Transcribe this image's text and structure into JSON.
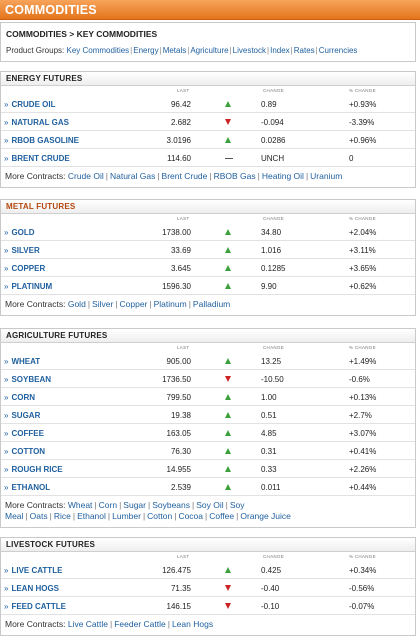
{
  "header": {
    "title": "COMMODITIES"
  },
  "nav": {
    "breadcrumb": "COMMODITIES > KEY COMMODITIES",
    "groups_label": "Product Groups:",
    "groups": [
      "Key Commodities",
      "Energy",
      "Metals",
      "Agriculture",
      "Livestock",
      "Index",
      "Rates",
      "Currencies"
    ]
  },
  "columns": {
    "last": "LAST",
    "change": "CHANGE",
    "pct_change": "% CHANGE"
  },
  "more_label": "More Contracts:",
  "arrow_colors": {
    "up": "#3ca03c",
    "down": "#cc2222"
  },
  "sections": [
    {
      "title": "ENERGY FUTURES",
      "rows": [
        {
          "name": "CRUDE OIL",
          "last": "96.42",
          "dir": "up",
          "change": "0.89",
          "pct": "+0.93%"
        },
        {
          "name": "NATURAL GAS",
          "last": "2.682",
          "dir": "down",
          "change": "-0.094",
          "pct": "-3.39%"
        },
        {
          "name": "RBOB GASOLINE",
          "last": "3.0196",
          "dir": "up",
          "change": "0.0286",
          "pct": "+0.96%"
        },
        {
          "name": "BRENT CRUDE",
          "last": "114.60",
          "dir": "flat",
          "change": "UNCH",
          "pct": "0"
        }
      ],
      "more": [
        "Crude Oil",
        "Natural Gas",
        "Brent Crude",
        "RBOB Gas",
        "Heating Oil",
        "Uranium"
      ]
    },
    {
      "title": "METAL FUTURES",
      "rows": [
        {
          "name": "GOLD",
          "last": "1738.00",
          "dir": "up",
          "change": "34.80",
          "pct": "+2.04%"
        },
        {
          "name": "SILVER",
          "last": "33.69",
          "dir": "up",
          "change": "1.016",
          "pct": "+3.11%"
        },
        {
          "name": "COPPER",
          "last": "3.645",
          "dir": "up",
          "change": "0.1285",
          "pct": "+3.65%"
        },
        {
          "name": "PLATINUM",
          "last": "1596.30",
          "dir": "up",
          "change": "9.90",
          "pct": "+0.62%"
        }
      ],
      "more": [
        "Gold",
        "Silver",
        "Copper",
        "Platinum",
        "Palladium"
      ]
    },
    {
      "title": "AGRICULTURE FUTURES",
      "rows": [
        {
          "name": "WHEAT",
          "last": "905.00",
          "dir": "up",
          "change": "13.25",
          "pct": "+1.49%"
        },
        {
          "name": "SOYBEAN",
          "last": "1736.50",
          "dir": "down",
          "change": "-10.50",
          "pct": "-0.6%"
        },
        {
          "name": "CORN",
          "last": "799.50",
          "dir": "up",
          "change": "1.00",
          "pct": "+0.13%"
        },
        {
          "name": "SUGAR",
          "last": "19.38",
          "dir": "up",
          "change": "0.51",
          "pct": "+2.7%"
        },
        {
          "name": "COFFEE",
          "last": "163.05",
          "dir": "up",
          "change": "4.85",
          "pct": "+3.07%"
        },
        {
          "name": "COTTON",
          "last": "76.30",
          "dir": "up",
          "change": "0.31",
          "pct": "+0.41%"
        },
        {
          "name": "ROUGH RICE",
          "last": "14.955",
          "dir": "up",
          "change": "0.33",
          "pct": "+2.26%"
        },
        {
          "name": "ETHANOL",
          "last": "2.539",
          "dir": "up",
          "change": "0.011",
          "pct": "+0.44%"
        }
      ],
      "more": [
        "Wheat",
        "Corn",
        "Sugar",
        "Soybeans",
        "Soy Oil",
        "Soy Meal",
        "Oats",
        "Rice",
        "Ethanol",
        "Lumber",
        "Cotton",
        "Cocoa",
        "Coffee",
        "Orange Juice"
      ]
    },
    {
      "title": "LIVESTOCK FUTURES",
      "rows": [
        {
          "name": "LIVE CATTLE",
          "last": "126.475",
          "dir": "up",
          "change": "0.425",
          "pct": "+0.34%"
        },
        {
          "name": "LEAN HOGS",
          "last": "71.35",
          "dir": "down",
          "change": "-0.40",
          "pct": "-0.56%"
        },
        {
          "name": "FEED CATTLE",
          "last": "146.15",
          "dir": "down",
          "change": "-0.10",
          "pct": "-0.07%"
        }
      ],
      "more": [
        "Live Cattle",
        "Feeder Cattle",
        "Lean Hogs"
      ]
    }
  ]
}
